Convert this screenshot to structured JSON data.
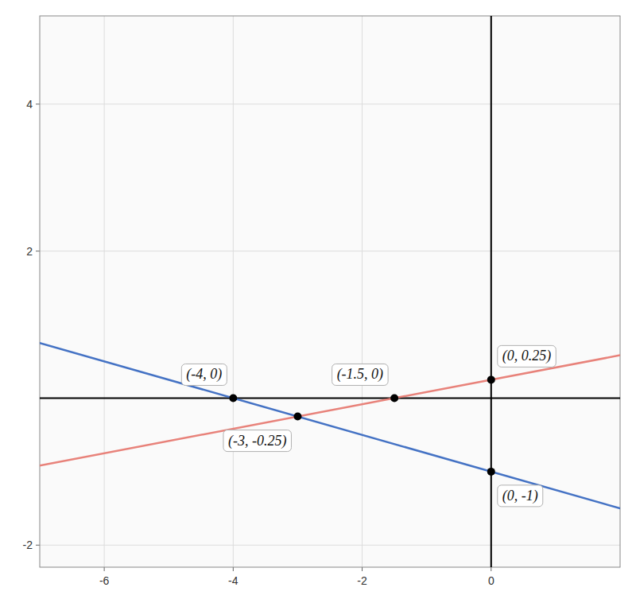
{
  "chart_data": {
    "type": "line",
    "series": [
      {
        "type": "line",
        "color": "#4472C4",
        "x": [
          -7.0,
          2.0
        ],
        "values": [
          0.75,
          -1.5
        ]
      },
      {
        "type": "line",
        "color": "#E8827A",
        "x": [
          -7.0,
          2.0
        ],
        "values": [
          -0.91669,
          0.58334
        ]
      },
      {
        "type": "scatter",
        "color": "#000000",
        "x": [
          -4,
          -1.5,
          0,
          -3,
          0
        ],
        "values": [
          0,
          0,
          0.25,
          -0.25,
          -1
        ]
      }
    ],
    "annotations": [
      "(-4, 0)",
      "(-1.5, 0)",
      "(0, 0.25)",
      "(-3, -0.25)",
      "(0, -1)"
    ],
    "xlim": [
      -7.0,
      2.0
    ],
    "ylim": [
      -2.3,
      5.2
    ],
    "xticks": [
      -6,
      -4,
      -2,
      0
    ],
    "yticks": [
      -2,
      2,
      4
    ],
    "grid": true
  }
}
